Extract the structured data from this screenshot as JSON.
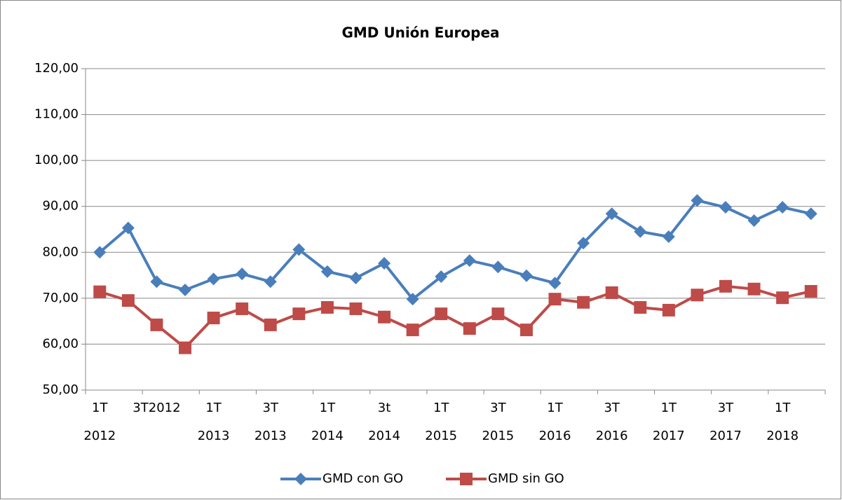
{
  "chart_data": {
    "type": "line",
    "title": "GMD Unión Europea",
    "categories": [
      "1T\n2012",
      null,
      "3T2012",
      null,
      "1T\n2013",
      null,
      "3T\n2013",
      null,
      "1T\n2014",
      null,
      "3t\n2014",
      null,
      "1T\n2015",
      null,
      "3T\n2015",
      null,
      "1T\n2016",
      null,
      "3T\n2016",
      null,
      "1T\n2017",
      null,
      "3T\n2017",
      null,
      "1T\n2018",
      null
    ],
    "series": [
      {
        "name": "GMD con GO",
        "color": "#4a7ebb",
        "marker": "diamond",
        "values": [
          80.0,
          85.3,
          73.6,
          71.8,
          74.2,
          75.3,
          73.6,
          80.6,
          75.8,
          74.4,
          77.6,
          69.8,
          74.7,
          78.2,
          76.8,
          74.9,
          73.3,
          82.0,
          88.4,
          84.5,
          83.4,
          91.3,
          89.8,
          86.9,
          89.8,
          88.4
        ]
      },
      {
        "name": "GMD sin GO",
        "color": "#be4b48",
        "marker": "square",
        "values": [
          71.4,
          69.5,
          64.2,
          59.2,
          65.7,
          67.7,
          64.2,
          66.6,
          68.0,
          67.7,
          65.9,
          63.1,
          66.6,
          63.4,
          66.6,
          63.1,
          69.8,
          69.1,
          71.2,
          68.0,
          67.4,
          70.7,
          72.6,
          72.0,
          70.1,
          71.5
        ]
      }
    ],
    "ylim": [
      50,
      120
    ],
    "yticks": [
      {
        "value": 50,
        "label": "50,00"
      },
      {
        "value": 60,
        "label": "60,00"
      },
      {
        "value": 70,
        "label": "70,00"
      },
      {
        "value": 80,
        "label": "80,00"
      },
      {
        "value": 90,
        "label": "90,00"
      },
      {
        "value": 100,
        "label": "100,00"
      },
      {
        "value": 110,
        "label": "110,00"
      },
      {
        "value": 120,
        "label": "120,00"
      }
    ],
    "grid": true,
    "legend": "bottom"
  }
}
